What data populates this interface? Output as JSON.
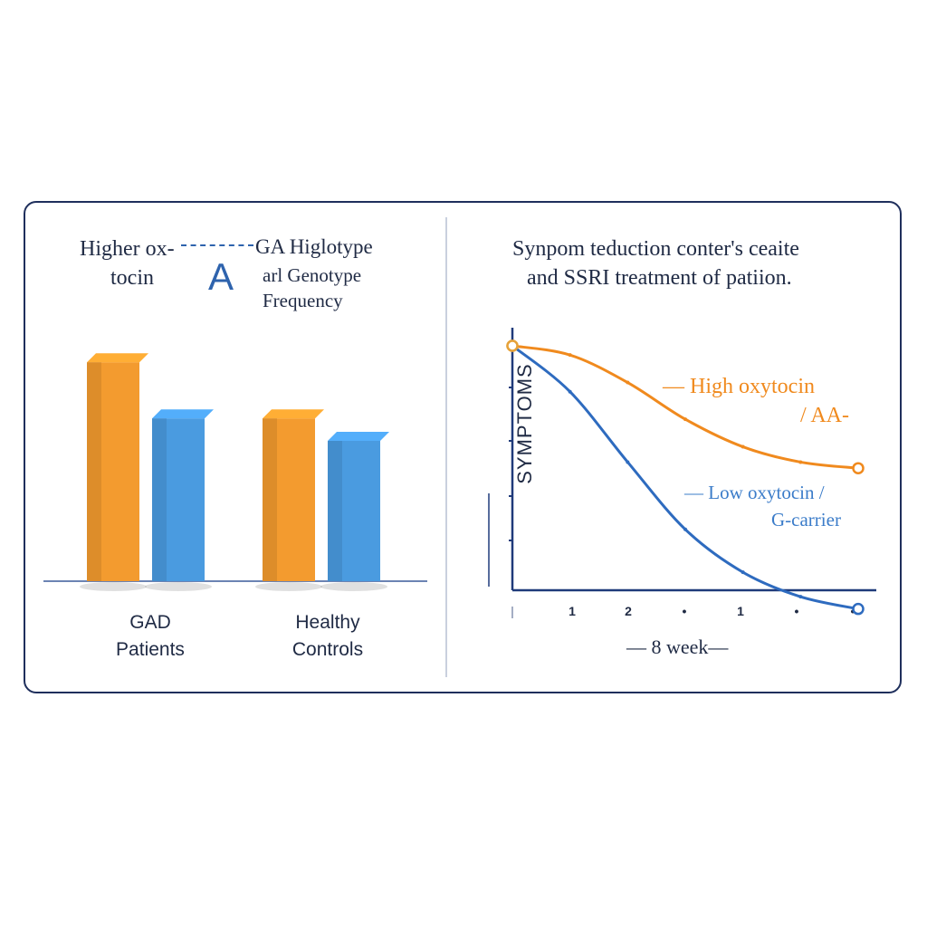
{
  "chart_data": [
    {
      "type": "bar",
      "title_lines": [
        "Higher ox-",
        "tocin",
        "A",
        "GA Higlotype",
        "arl Genotype",
        "Frequency"
      ],
      "categories": [
        "GAD Patients",
        "Healthy Controls"
      ],
      "category_lines": [
        [
          "GAD",
          "Patients"
        ],
        [
          "Healthy",
          "Controls"
        ]
      ],
      "series": [
        {
          "values": [
            0.78,
            0.58
          ]
        },
        {
          "values": [
            0.58,
            0.5
          ]
        }
      ],
      "ylim": [
        0,
        1
      ],
      "colors": [
        "#f39b2f",
        "#4a9be0"
      ]
    },
    {
      "type": "line",
      "title_lines": [
        "Synpom teduction conter's ceaite",
        "and SSRI treatment of patiion."
      ],
      "ylabel": "SYMPTOMS",
      "xlabel": "— 8 week—",
      "x_tick_labels": [
        "",
        "1",
        "2",
        "•",
        "1",
        "•",
        "•"
      ],
      "x": [
        0,
        1,
        2,
        3,
        4,
        5,
        6
      ],
      "ylim": [
        0,
        1
      ],
      "series": [
        {
          "legend_lines": [
            "— High oxytocin",
            "/ AA-"
          ],
          "color": "#f08a1e",
          "values": [
            1.0,
            0.97,
            0.88,
            0.76,
            0.67,
            0.62,
            0.6
          ]
        },
        {
          "legend_lines": [
            "— Low oxytocin /",
            "G-carrier"
          ],
          "color": "#2e6bbf",
          "values": [
            1.0,
            0.85,
            0.62,
            0.4,
            0.26,
            0.18,
            0.14
          ]
        }
      ]
    }
  ]
}
